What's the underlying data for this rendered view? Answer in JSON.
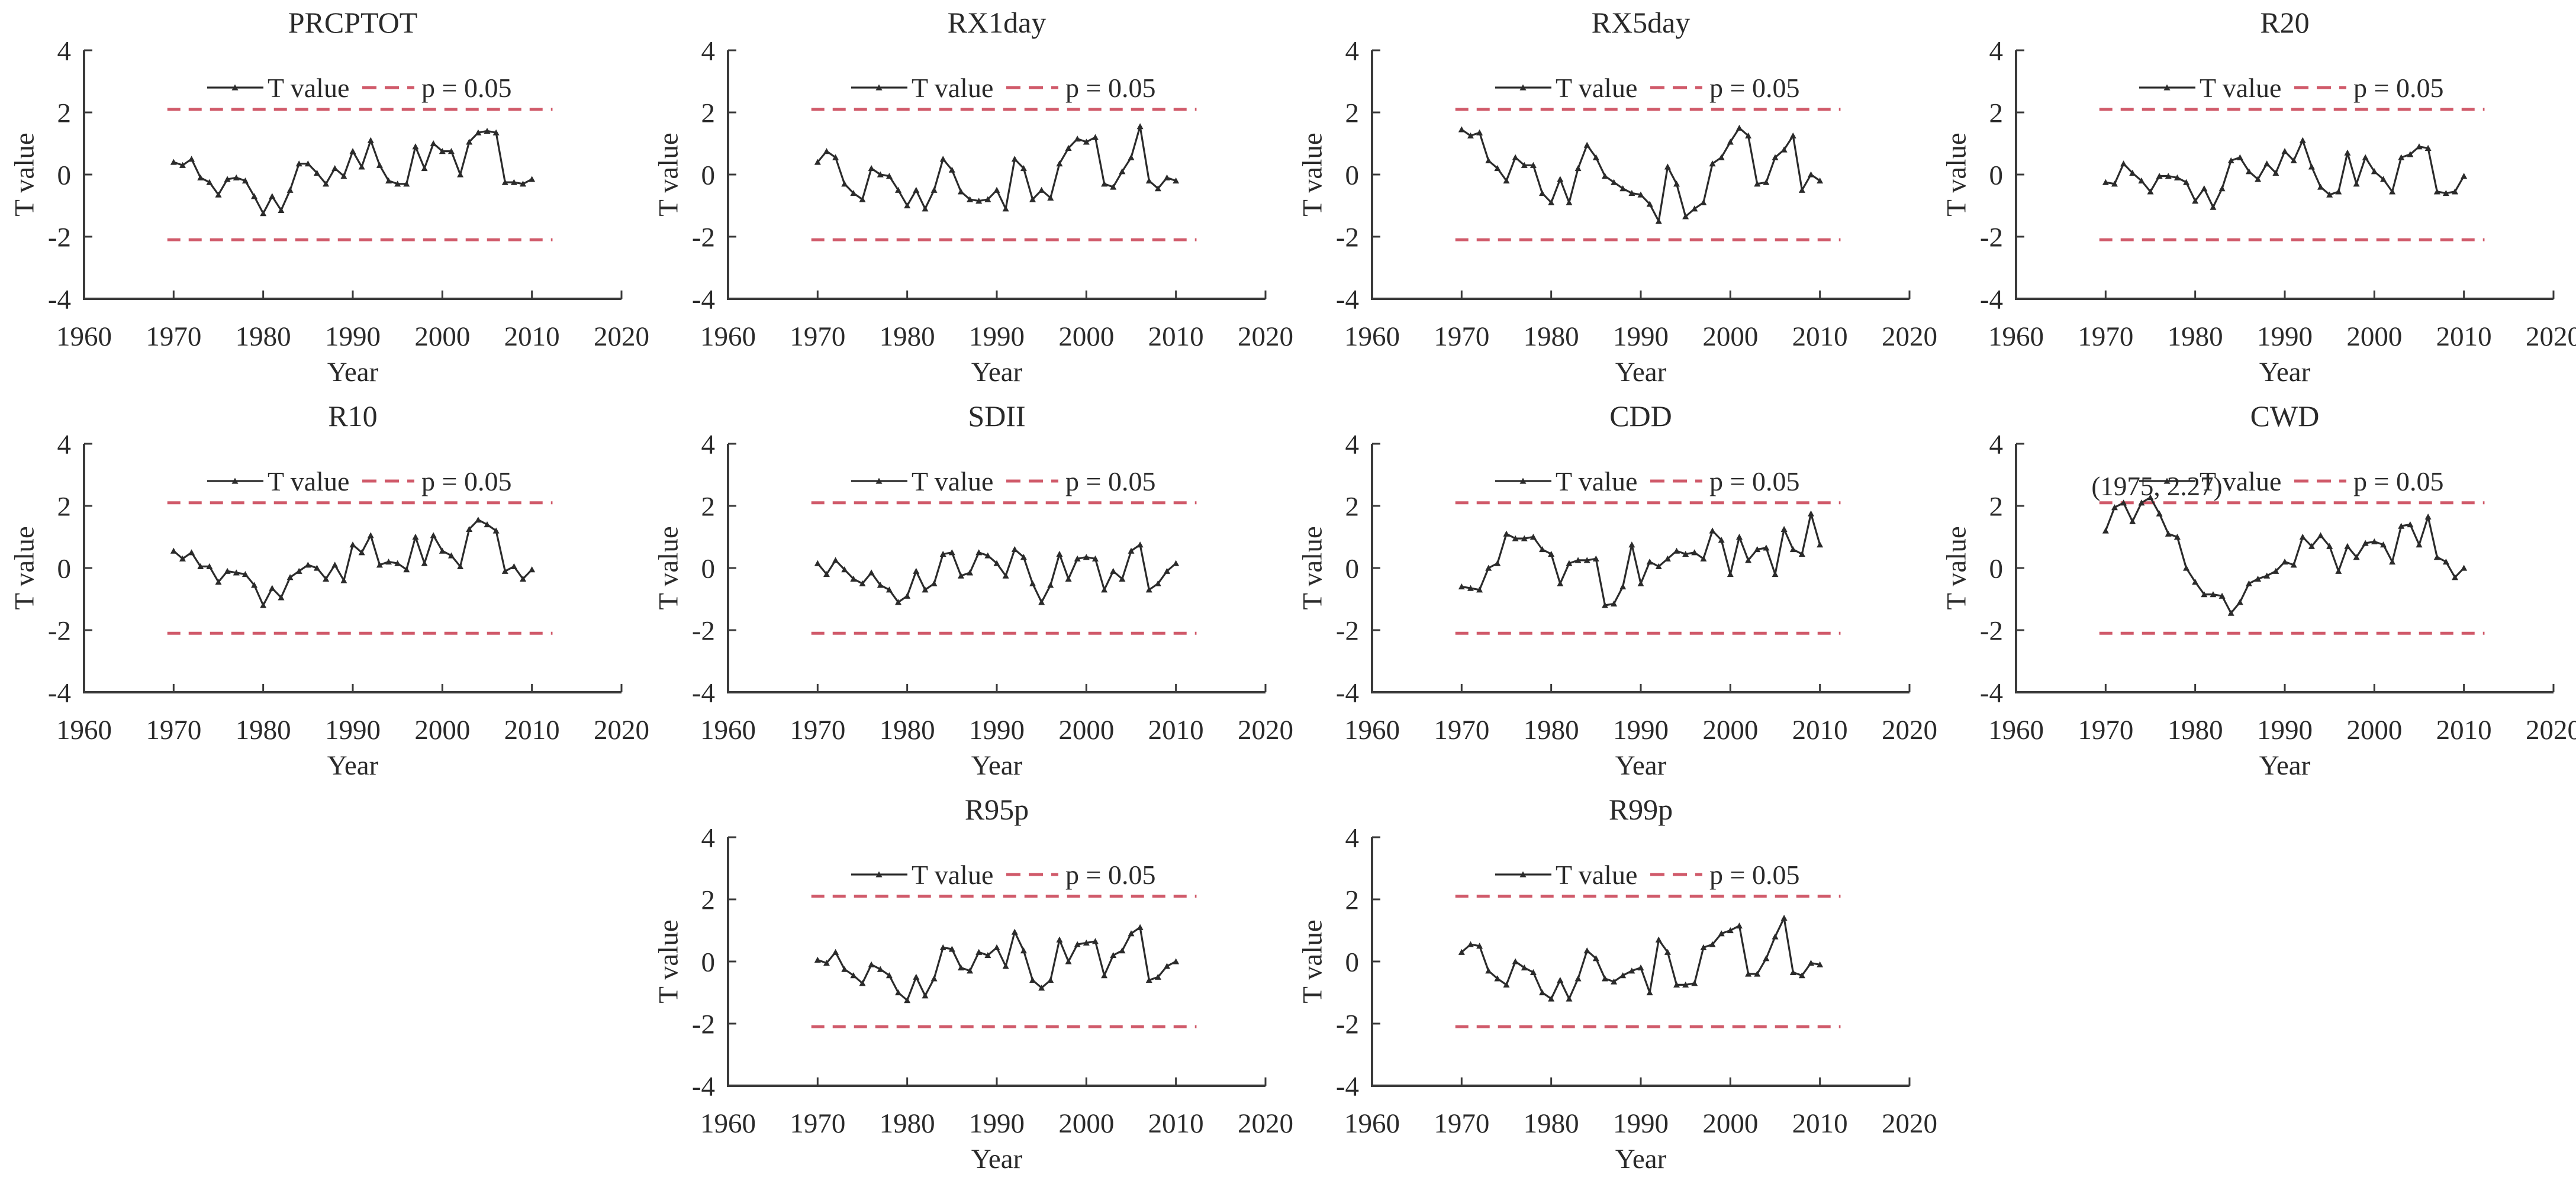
{
  "figure": {
    "kind": "multi-panel statistical significance figure",
    "panel_titles": [
      "PRCPTOT",
      "RX1day",
      "RX5day",
      "R20",
      "R10",
      "SDII",
      "CDD",
      "CWD",
      "R95p",
      "R99p"
    ]
  },
  "chart_data": {
    "type": "line",
    "xlabel": "Year",
    "ylabel": "T value",
    "xlim": [
      1960,
      2020
    ],
    "ylim": [
      -4,
      4
    ],
    "xticks": [
      1960,
      1970,
      1980,
      1990,
      2000,
      2010,
      2020
    ],
    "yticks": [
      -4,
      -2,
      0,
      2,
      4
    ],
    "grid": "off",
    "legend": {
      "position": "inside-top",
      "series_label": "T value",
      "threshold_label": "p = 0.05"
    },
    "significance_threshold": 2.1,
    "colors": {
      "line": "#2b2b2b",
      "threshold": "#d05a6a",
      "text": "#2a2a2a",
      "axis": "#3a3a3a",
      "background": "#ffffff"
    },
    "years": [
      1970,
      1971,
      1972,
      1973,
      1974,
      1975,
      1976,
      1977,
      1978,
      1979,
      1980,
      1981,
      1982,
      1983,
      1984,
      1985,
      1986,
      1987,
      1988,
      1989,
      1990,
      1991,
      1992,
      1993,
      1994,
      1995,
      1996,
      1997,
      1998,
      1999,
      2000,
      2001,
      2002,
      2003,
      2004,
      2005,
      2006,
      2007,
      2008,
      2009,
      2010
    ],
    "panels": [
      {
        "title": "PRCPTOT",
        "row": 0,
        "col": 0,
        "values": [
          0.4,
          0.3,
          0.5,
          -0.1,
          -0.25,
          -0.65,
          -0.15,
          -0.1,
          -0.2,
          -0.7,
          -1.25,
          -0.7,
          -1.15,
          -0.5,
          0.35,
          0.35,
          0.05,
          -0.3,
          0.2,
          -0.05,
          0.75,
          0.25,
          1.1,
          0.3,
          -0.2,
          -0.3,
          -0.3,
          0.9,
          0.2,
          1.0,
          0.75,
          0.75,
          0.0,
          1.05,
          1.35,
          1.4,
          1.35,
          -0.25,
          -0.25,
          -0.3,
          -0.15
        ]
      },
      {
        "title": "RX1day",
        "row": 0,
        "col": 1,
        "values": [
          0.4,
          0.75,
          0.55,
          -0.3,
          -0.6,
          -0.8,
          0.2,
          0.0,
          -0.05,
          -0.5,
          -1.0,
          -0.5,
          -1.1,
          -0.5,
          0.5,
          0.15,
          -0.55,
          -0.8,
          -0.85,
          -0.8,
          -0.5,
          -1.1,
          0.5,
          0.2,
          -0.8,
          -0.5,
          -0.75,
          0.35,
          0.85,
          1.15,
          1.05,
          1.2,
          -0.3,
          -0.4,
          0.1,
          0.55,
          1.55,
          -0.2,
          -0.45,
          -0.1,
          -0.2
        ]
      },
      {
        "title": "RX5day",
        "row": 0,
        "col": 2,
        "values": [
          1.45,
          1.25,
          1.35,
          0.45,
          0.2,
          -0.2,
          0.55,
          0.3,
          0.3,
          -0.6,
          -0.9,
          -0.15,
          -0.9,
          0.2,
          0.95,
          0.55,
          -0.05,
          -0.25,
          -0.45,
          -0.6,
          -0.65,
          -0.95,
          -1.5,
          0.25,
          -0.3,
          -1.35,
          -1.1,
          -0.9,
          0.35,
          0.55,
          1.05,
          1.5,
          1.25,
          -0.3,
          -0.25,
          0.55,
          0.8,
          1.25,
          -0.5,
          0.0,
          -0.2
        ]
      },
      {
        "title": "R20",
        "row": 0,
        "col": 3,
        "values": [
          -0.25,
          -0.3,
          0.35,
          0.05,
          -0.2,
          -0.55,
          -0.05,
          -0.05,
          -0.1,
          -0.25,
          -0.85,
          -0.45,
          -1.05,
          -0.45,
          0.45,
          0.55,
          0.1,
          -0.15,
          0.35,
          0.05,
          0.75,
          0.45,
          1.1,
          0.25,
          -0.4,
          -0.65,
          -0.55,
          0.7,
          -0.3,
          0.55,
          0.1,
          -0.15,
          -0.55,
          0.55,
          0.65,
          0.9,
          0.85,
          -0.55,
          -0.6,
          -0.55,
          -0.05
        ]
      },
      {
        "title": "R10",
        "row": 1,
        "col": 0,
        "values": [
          0.55,
          0.3,
          0.5,
          0.05,
          0.05,
          -0.45,
          -0.1,
          -0.15,
          -0.2,
          -0.55,
          -1.2,
          -0.65,
          -0.95,
          -0.3,
          -0.1,
          0.1,
          0.0,
          -0.35,
          0.1,
          -0.4,
          0.75,
          0.5,
          1.05,
          0.1,
          0.2,
          0.15,
          -0.05,
          1.0,
          0.15,
          1.05,
          0.55,
          0.4,
          0.05,
          1.25,
          1.55,
          1.4,
          1.2,
          -0.1,
          0.05,
          -0.35,
          -0.05
        ]
      },
      {
        "title": "SDII",
        "row": 1,
        "col": 1,
        "values": [
          0.15,
          -0.2,
          0.25,
          -0.05,
          -0.35,
          -0.5,
          -0.15,
          -0.55,
          -0.7,
          -1.1,
          -0.9,
          -0.1,
          -0.7,
          -0.5,
          0.45,
          0.5,
          -0.25,
          -0.15,
          0.5,
          0.4,
          0.15,
          -0.25,
          0.6,
          0.35,
          -0.5,
          -1.1,
          -0.55,
          0.45,
          -0.35,
          0.3,
          0.35,
          0.3,
          -0.7,
          -0.1,
          -0.35,
          0.55,
          0.75,
          -0.7,
          -0.5,
          -0.1,
          0.15
        ]
      },
      {
        "title": "CDD",
        "row": 1,
        "col": 2,
        "values": [
          -0.6,
          -0.65,
          -0.7,
          0.0,
          0.15,
          1.1,
          0.95,
          0.95,
          1.0,
          0.6,
          0.45,
          -0.5,
          0.15,
          0.25,
          0.25,
          0.3,
          -1.2,
          -1.15,
          -0.6,
          0.75,
          -0.5,
          0.2,
          0.05,
          0.3,
          0.55,
          0.45,
          0.5,
          0.3,
          1.2,
          0.9,
          -0.2,
          1.0,
          0.25,
          0.6,
          0.65,
          -0.2,
          1.25,
          0.6,
          0.45,
          1.75,
          0.75
        ]
      },
      {
        "title": "CWD",
        "row": 1,
        "col": 3,
        "values": [
          1.2,
          1.95,
          2.1,
          1.5,
          2.1,
          2.27,
          1.75,
          1.1,
          1.0,
          0.0,
          -0.45,
          -0.85,
          -0.85,
          -0.9,
          -1.45,
          -1.1,
          -0.5,
          -0.35,
          -0.25,
          -0.1,
          0.2,
          0.1,
          1.0,
          0.7,
          1.05,
          0.7,
          -0.1,
          0.7,
          0.35,
          0.8,
          0.85,
          0.75,
          0.2,
          1.35,
          1.4,
          0.75,
          1.65,
          0.35,
          0.2,
          -0.3,
          0.0
        ],
        "annotation": {
          "text": "(1975, 2.27)",
          "x": 1975,
          "y": 2.27
        }
      },
      {
        "title": "R95p",
        "row": 2,
        "col": 1,
        "values": [
          0.05,
          -0.05,
          0.3,
          -0.25,
          -0.45,
          -0.7,
          -0.1,
          -0.25,
          -0.45,
          -1.0,
          -1.25,
          -0.5,
          -1.1,
          -0.55,
          0.45,
          0.4,
          -0.2,
          -0.3,
          0.3,
          0.2,
          0.45,
          -0.15,
          0.95,
          0.35,
          -0.6,
          -0.85,
          -0.6,
          0.7,
          0.0,
          0.55,
          0.6,
          0.65,
          -0.45,
          0.2,
          0.35,
          0.9,
          1.1,
          -0.6,
          -0.5,
          -0.15,
          0.0
        ]
      },
      {
        "title": "R99p",
        "row": 2,
        "col": 2,
        "values": [
          0.3,
          0.55,
          0.5,
          -0.3,
          -0.55,
          -0.75,
          0.0,
          -0.2,
          -0.35,
          -1.0,
          -1.2,
          -0.6,
          -1.2,
          -0.55,
          0.35,
          0.1,
          -0.55,
          -0.65,
          -0.45,
          -0.3,
          -0.2,
          -1.0,
          0.7,
          0.3,
          -0.75,
          -0.75,
          -0.7,
          0.45,
          0.55,
          0.9,
          1.0,
          1.15,
          -0.4,
          -0.4,
          0.1,
          0.8,
          1.4,
          -0.35,
          -0.45,
          -0.05,
          -0.1
        ]
      }
    ]
  }
}
